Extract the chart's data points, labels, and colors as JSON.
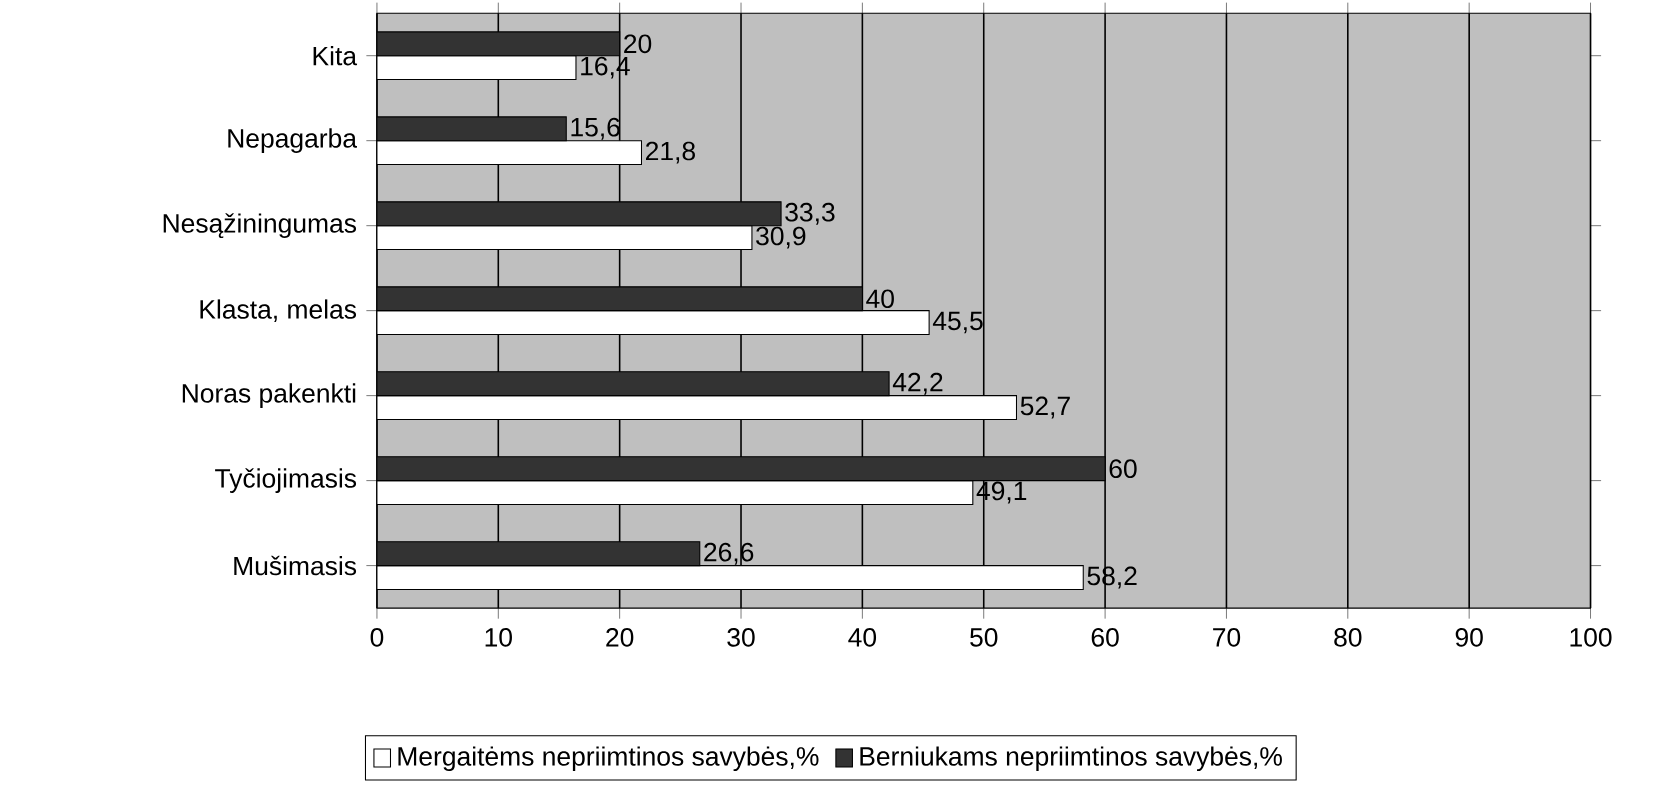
{
  "chart_data": {
    "type": "bar",
    "orientation": "horizontal",
    "categories": [
      "Kita",
      "Nepagarba",
      "Nesąžiningumas",
      "Klasta, melas",
      "Noras pakenkti",
      "Tyčiojimasis",
      "Mušimasis"
    ],
    "series": [
      {
        "name": "Mergaitėms nepriimtinos savybės,%",
        "color": "#ffffff",
        "values": [
          16.4,
          21.8,
          30.9,
          45.5,
          52.7,
          49.1,
          58.2
        ],
        "value_labels": [
          "16,4",
          "21,8",
          "30,9",
          "45,5",
          "52,7",
          "49,1",
          "58,2"
        ]
      },
      {
        "name": "Berniukams nepriimtinos savybės,%",
        "color": "#333333",
        "values": [
          20,
          15.6,
          33.3,
          40,
          42.2,
          60,
          26.6
        ],
        "value_labels": [
          "20",
          "15,6",
          "33,3",
          "40",
          "42,2",
          "60",
          "26,6"
        ]
      }
    ],
    "xlim": [
      0,
      100
    ],
    "xticks": [
      0,
      10,
      20,
      30,
      40,
      50,
      60,
      70,
      80,
      90,
      100
    ],
    "grid": "x",
    "legend": "bottom"
  }
}
